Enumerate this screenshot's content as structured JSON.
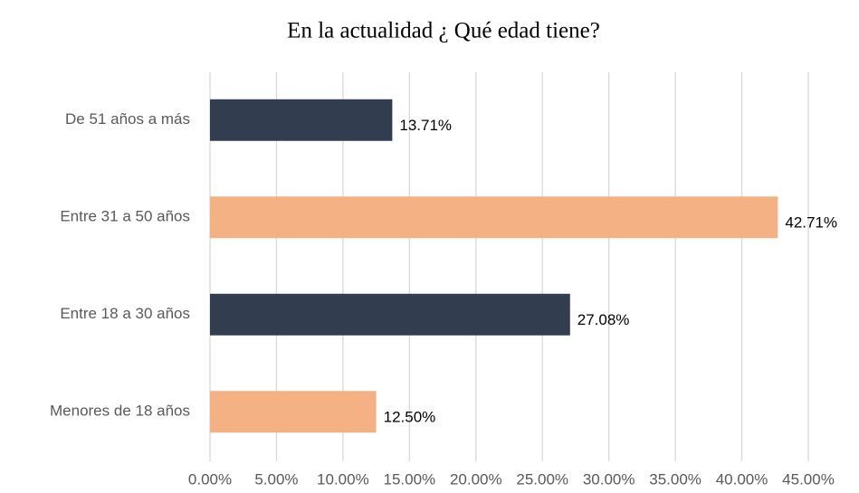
{
  "chart_data": {
    "type": "barh",
    "title": "En la actualidad ¿ Qué edad tiene?",
    "categories": [
      "De 51 años a más",
      "Entre 31 a 50 años",
      "Entre 18  a 30 años",
      "Menores de 18 años"
    ],
    "values": [
      13.71,
      42.71,
      27.08,
      12.5
    ],
    "value_labels": [
      "13.71%",
      "42.71%",
      "27.08%",
      "12.50%"
    ],
    "colors": [
      "#333d50",
      "#f4b183",
      "#333d50",
      "#f4b183"
    ],
    "xlim": [
      0,
      45
    ],
    "xticks": [
      {
        "value": 0,
        "label": "0.00%"
      },
      {
        "value": 5,
        "label": "5.00%"
      },
      {
        "value": 10,
        "label": "10.00%"
      },
      {
        "value": 15,
        "label": "15.00%"
      },
      {
        "value": 20,
        "label": "20.00%"
      },
      {
        "value": 25,
        "label": "25.00%"
      },
      {
        "value": 30,
        "label": "30.00%"
      },
      {
        "value": 35,
        "label": "35.00%"
      },
      {
        "value": 40,
        "label": "40.00%"
      },
      {
        "value": 45,
        "label": "45.00%"
      }
    ],
    "grid": true
  }
}
